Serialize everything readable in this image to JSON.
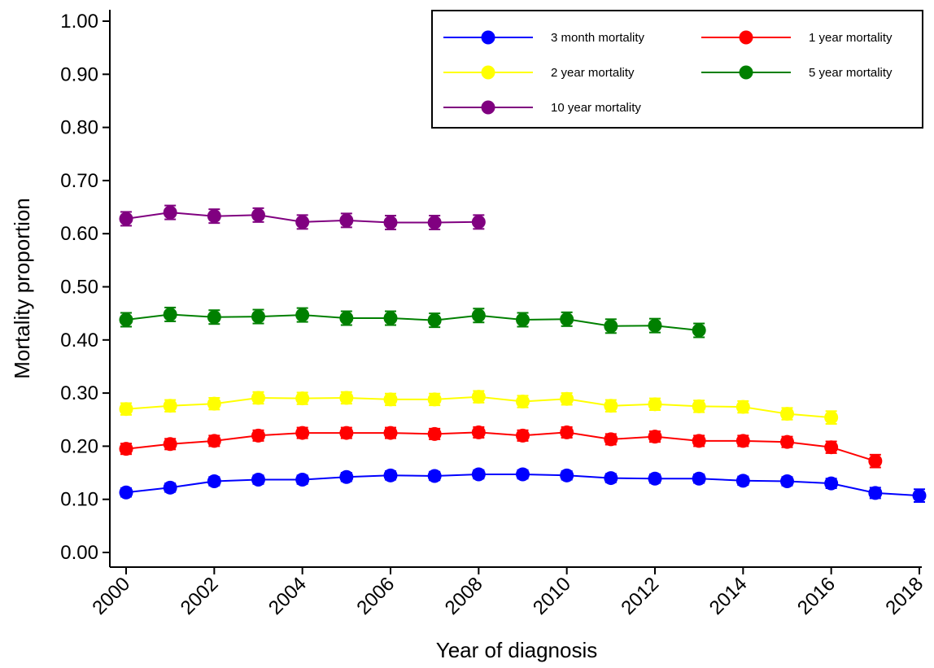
{
  "chart_data": {
    "type": "line",
    "title": "",
    "xlabel": "Year of diagnosis",
    "ylabel": "Mortality proportion",
    "xlim": [
      2000,
      2018
    ],
    "ylim": [
      0,
      1
    ],
    "x_ticks": [
      "2000",
      "2002",
      "2004",
      "2006",
      "2008",
      "2010",
      "2012",
      "2014",
      "2016",
      "2018"
    ],
    "y_ticks": [
      "0.00",
      "0.10",
      "0.20",
      "0.30",
      "0.40",
      "0.50",
      "0.60",
      "0.70",
      "0.80",
      "0.90",
      "1.00"
    ],
    "grid": false,
    "legend_position": "top-right",
    "error_bars": true,
    "series": [
      {
        "name": "3 month mortality",
        "color": "#0000ff",
        "x": [
          2000,
          2001,
          2002,
          2003,
          2004,
          2005,
          2006,
          2007,
          2008,
          2009,
          2010,
          2011,
          2012,
          2013,
          2014,
          2015,
          2016,
          2017,
          2018
        ],
        "values": [
          0.113,
          0.122,
          0.134,
          0.137,
          0.137,
          0.142,
          0.145,
          0.144,
          0.147,
          0.147,
          0.145,
          0.14,
          0.139,
          0.139,
          0.135,
          0.134,
          0.13,
          0.112,
          0.107
        ],
        "err": [
          0.008,
          0.008,
          0.008,
          0.008,
          0.008,
          0.008,
          0.008,
          0.008,
          0.008,
          0.008,
          0.008,
          0.008,
          0.008,
          0.008,
          0.008,
          0.008,
          0.009,
          0.01,
          0.012
        ]
      },
      {
        "name": "1 year mortality",
        "color": "#ff0000",
        "x": [
          2000,
          2001,
          2002,
          2003,
          2004,
          2005,
          2006,
          2007,
          2008,
          2009,
          2010,
          2011,
          2012,
          2013,
          2014,
          2015,
          2016,
          2017
        ],
        "values": [
          0.195,
          0.204,
          0.21,
          0.22,
          0.225,
          0.225,
          0.225,
          0.223,
          0.226,
          0.22,
          0.226,
          0.213,
          0.218,
          0.21,
          0.21,
          0.208,
          0.198,
          0.172
        ],
        "err": [
          0.01,
          0.01,
          0.01,
          0.01,
          0.01,
          0.01,
          0.01,
          0.01,
          0.01,
          0.01,
          0.01,
          0.01,
          0.01,
          0.01,
          0.01,
          0.01,
          0.011,
          0.012
        ]
      },
      {
        "name": "2 year mortality",
        "color": "#ffff00",
        "x": [
          2000,
          2001,
          2002,
          2003,
          2004,
          2005,
          2006,
          2007,
          2008,
          2009,
          2010,
          2011,
          2012,
          2013,
          2014,
          2015,
          2016
        ],
        "values": [
          0.27,
          0.276,
          0.28,
          0.291,
          0.29,
          0.291,
          0.288,
          0.288,
          0.293,
          0.284,
          0.289,
          0.276,
          0.279,
          0.275,
          0.274,
          0.261,
          0.254
        ],
        "err": [
          0.011,
          0.011,
          0.011,
          0.011,
          0.011,
          0.011,
          0.011,
          0.011,
          0.011,
          0.011,
          0.011,
          0.011,
          0.011,
          0.011,
          0.011,
          0.011,
          0.012
        ]
      },
      {
        "name": "5 year mortality",
        "color": "#008000",
        "x": [
          2000,
          2001,
          2002,
          2003,
          2004,
          2005,
          2006,
          2007,
          2008,
          2009,
          2010,
          2011,
          2012,
          2013
        ],
        "values": [
          0.438,
          0.448,
          0.443,
          0.444,
          0.447,
          0.441,
          0.441,
          0.437,
          0.446,
          0.438,
          0.439,
          0.426,
          0.427,
          0.418
        ],
        "err": [
          0.013,
          0.013,
          0.013,
          0.013,
          0.013,
          0.013,
          0.013,
          0.013,
          0.013,
          0.013,
          0.013,
          0.013,
          0.013,
          0.013
        ]
      },
      {
        "name": "10 year mortality",
        "color": "#800080",
        "x": [
          2000,
          2001,
          2002,
          2003,
          2004,
          2005,
          2006,
          2007,
          2008
        ],
        "values": [
          0.628,
          0.64,
          0.633,
          0.635,
          0.622,
          0.625,
          0.621,
          0.621,
          0.622
        ],
        "err": [
          0.013,
          0.013,
          0.013,
          0.013,
          0.013,
          0.013,
          0.013,
          0.013,
          0.013
        ]
      }
    ]
  }
}
